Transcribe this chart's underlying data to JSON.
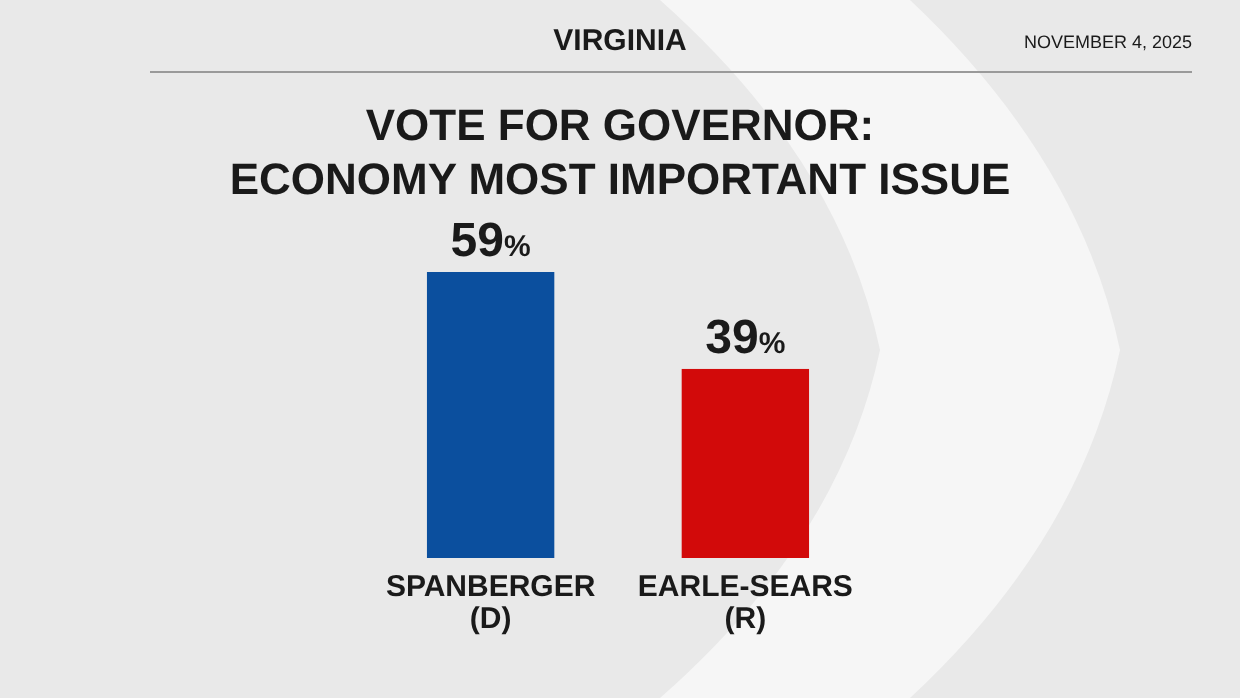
{
  "chart_data": {
    "type": "bar",
    "title": "VOTE FOR GOVERNOR:\nECONOMY MOST IMPORTANT ISSUE",
    "subtitle": "VIRGINIA",
    "annotations": [
      "NOVEMBER 4, 2025"
    ],
    "categories": [
      "SPANBERGER\n(D)",
      "EARLE-SEARS\n(R)"
    ],
    "values": [
      59,
      39
    ],
    "colors": [
      "#0b4f9e",
      "#d20a0a"
    ],
    "value_labels": [
      "59%",
      "39%"
    ]
  }
}
